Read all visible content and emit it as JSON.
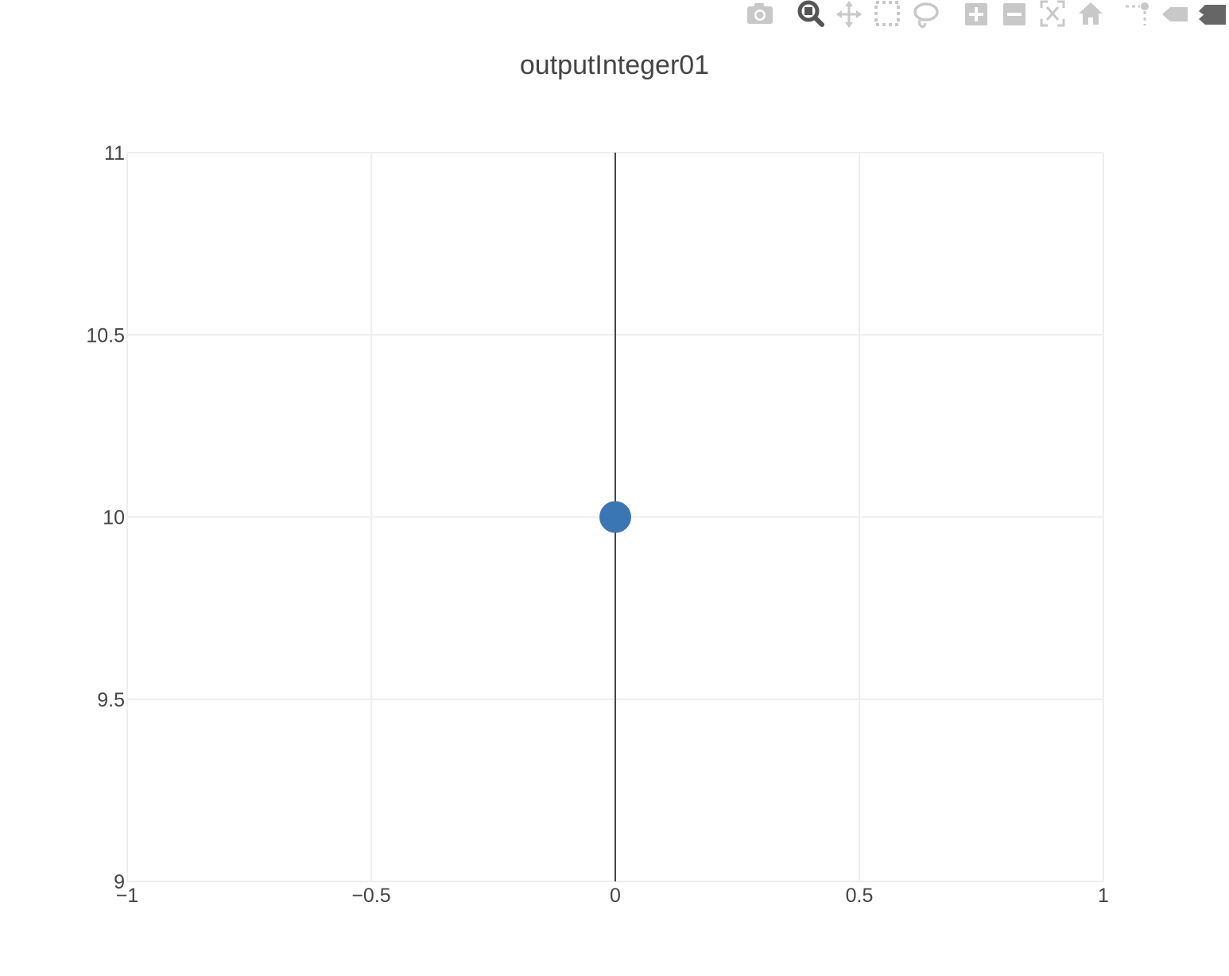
{
  "toolbar": {
    "icons": [
      "camera-icon",
      "zoom-icon",
      "pan-icon",
      "box-select-icon",
      "lasso-select-icon",
      "zoom-in-icon",
      "zoom-out-icon",
      "autoscale-icon",
      "reset-axes-icon",
      "spike-lines-icon",
      "hover-closest-icon",
      "hover-compare-icon"
    ],
    "active_icon": "zoom-icon",
    "icon_color": "#c8c8c8",
    "active_color": "#555555"
  },
  "chart_data": {
    "type": "scatter",
    "title": "outputInteger01",
    "xlabel": "",
    "ylabel": "",
    "xlim": [
      -1,
      1
    ],
    "ylim": [
      9,
      11
    ],
    "x_ticks": [
      -1,
      -0.5,
      0,
      0.5,
      1
    ],
    "x_tick_labels": [
      "−1",
      "−0.5",
      "0",
      "0.5",
      "1"
    ],
    "y_ticks": [
      9,
      9.5,
      10,
      10.5,
      11
    ],
    "y_tick_labels": [
      "9",
      "9.5",
      "10",
      "10.5",
      "11"
    ],
    "grid": true,
    "zero_line_x": 0,
    "series": [
      {
        "x": [
          0
        ],
        "y": [
          10
        ],
        "color": "#3a76b4"
      }
    ]
  }
}
